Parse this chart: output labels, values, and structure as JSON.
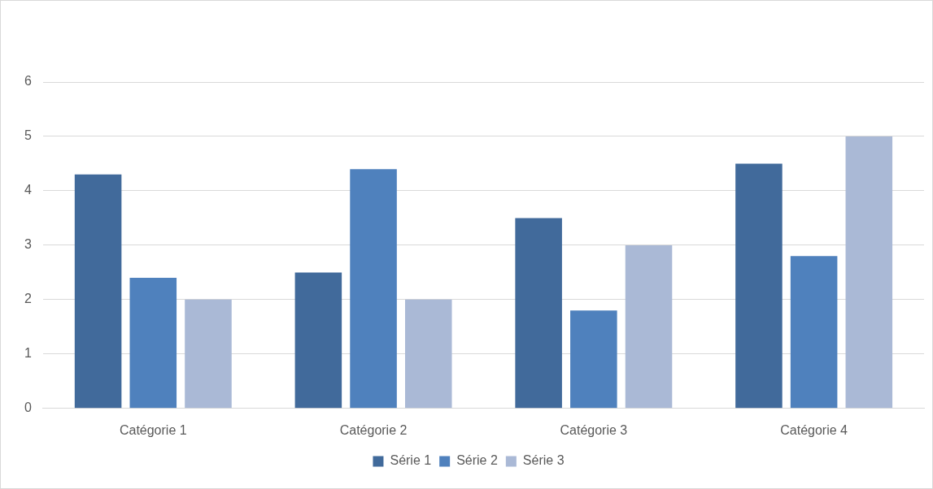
{
  "chart_data": {
    "type": "bar",
    "categories": [
      "Catégorie 1",
      "Catégorie 2",
      "Catégorie 3",
      "Catégorie 4"
    ],
    "series": [
      {
        "name": "Série 1",
        "color": "#416a9b",
        "values": [
          4.3,
          2.5,
          3.5,
          4.5
        ]
      },
      {
        "name": "Série 2",
        "color": "#4f81bd",
        "values": [
          2.4,
          4.4,
          1.8,
          2.8
        ]
      },
      {
        "name": "Série 3",
        "color": "#aab9d6",
        "values": [
          2,
          2,
          3,
          5
        ]
      }
    ],
    "ylim": [
      0,
      6
    ],
    "yticks": [
      0,
      1,
      2,
      3,
      4,
      5,
      6
    ],
    "grid": "y",
    "legend": "bottom"
  }
}
